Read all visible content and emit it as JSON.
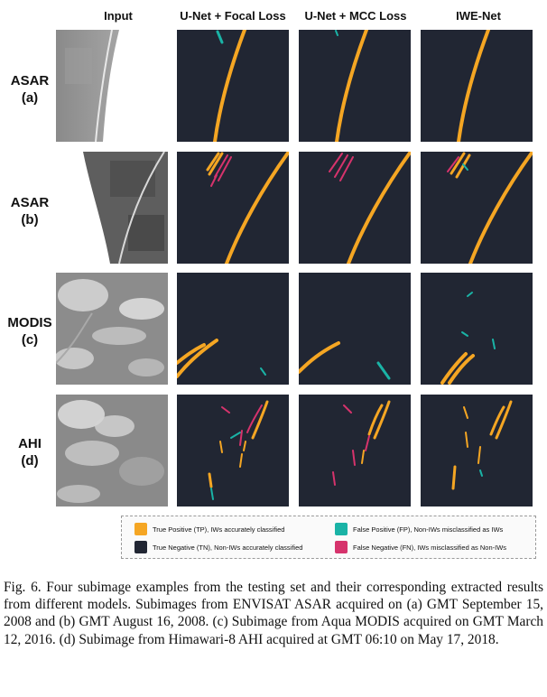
{
  "columns": [
    "Input",
    "U-Net + Focal Loss",
    "U-Net + MCC Loss",
    "IWE-Net"
  ],
  "rows": [
    {
      "sensor": "ASAR",
      "tag": "(a)"
    },
    {
      "sensor": "ASAR",
      "tag": "(b)"
    },
    {
      "sensor": "MODIS",
      "tag": "(c)"
    },
    {
      "sensor": "AHI",
      "tag": "(d)"
    }
  ],
  "colors": {
    "tp": "#f5a623",
    "tn": "#212633",
    "fp": "#1ab3a6",
    "fn": "#d6336c"
  },
  "legend": {
    "tp": "True Positive (TP), IWs accurately classified",
    "tn": "True Negative (TN), Non-IWs accurately classified",
    "fp": "False Positive (FP), Non-IWs misclassified as IWs",
    "fn": "False Negative (FN), IWs misclassified as Non-IWs"
  },
  "caption": "Fig. 6.   Four subimage examples from the testing set and their corresponding extracted results from different models. Subimages from ENVISAT ASAR acquired on (a) GMT September 15, 2008 and (b) GMT August 16, 2008. (c) Subimage from Aqua MODIS acquired on GMT March 12, 2016. (d) Subimage from Himawari-8 AHI acquired at GMT 06:10 on May 17, 2018."
}
